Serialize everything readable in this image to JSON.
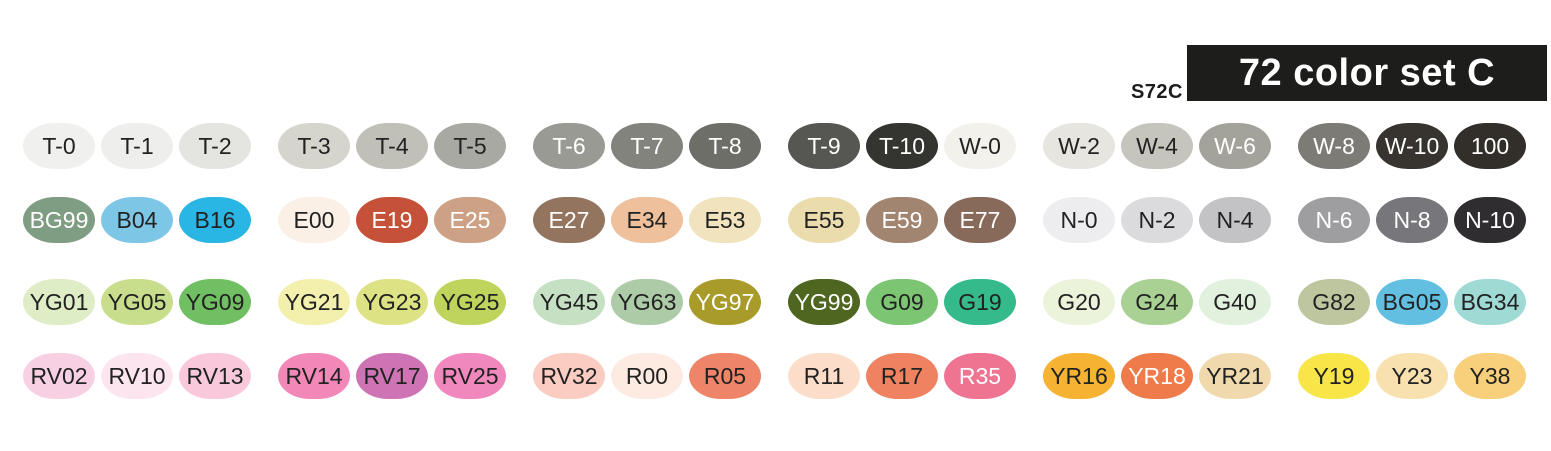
{
  "header": {
    "set_code": "S72C",
    "title": "72 color set C",
    "title_bg": "#1D1D1B",
    "title_color": "#FFFFFF"
  },
  "swatch_label_colors": {
    "dark": "#222222",
    "light": "#FFFFFF"
  },
  "rows": [
    {
      "name": "row-1-toner-warm-grays",
      "swatches": [
        {
          "label": "T-0",
          "color": "#F0F0EE",
          "label_tone": "dark"
        },
        {
          "label": "T-1",
          "color": "#EEEEEC",
          "label_tone": "dark"
        },
        {
          "label": "T-2",
          "color": "#E4E4E0",
          "label_tone": "dark"
        },
        {
          "label": "T-3",
          "color": "#D5D5CE",
          "label_tone": "dark"
        },
        {
          "label": "T-4",
          "color": "#C0C0B9",
          "label_tone": "dark"
        },
        {
          "label": "T-5",
          "color": "#A9A9A3",
          "label_tone": "dark"
        },
        {
          "label": "T-6",
          "color": "#9A9A94",
          "label_tone": "light"
        },
        {
          "label": "T-7",
          "color": "#83837D",
          "label_tone": "light"
        },
        {
          "label": "T-8",
          "color": "#6E6E69",
          "label_tone": "light"
        },
        {
          "label": "T-9",
          "color": "#565652",
          "label_tone": "light"
        },
        {
          "label": "T-10",
          "color": "#343430",
          "label_tone": "light"
        },
        {
          "label": "W-0",
          "color": "#F2F1EB",
          "label_tone": "dark"
        },
        {
          "label": "W-2",
          "color": "#E6E5DF",
          "label_tone": "dark"
        },
        {
          "label": "W-4",
          "color": "#C6C5BD",
          "label_tone": "dark"
        },
        {
          "label": "W-6",
          "color": "#A3A29B",
          "label_tone": "light"
        },
        {
          "label": "W-8",
          "color": "#7C7B75",
          "label_tone": "light"
        },
        {
          "label": "W-10",
          "color": "#37332E",
          "label_tone": "light"
        },
        {
          "label": "100",
          "color": "#322E2A",
          "label_tone": "light"
        }
      ]
    },
    {
      "name": "row-2-bg-b-e-n",
      "swatches": [
        {
          "label": "BG99",
          "color": "#7E9D83",
          "label_tone": "light"
        },
        {
          "label": "B04",
          "color": "#7DC6E6",
          "label_tone": "dark"
        },
        {
          "label": "B16",
          "color": "#2AB6E5",
          "label_tone": "dark"
        },
        {
          "label": "E00",
          "color": "#FBF0E5",
          "label_tone": "dark"
        },
        {
          "label": "E19",
          "color": "#C45138",
          "label_tone": "light"
        },
        {
          "label": "E25",
          "color": "#CDA185",
          "label_tone": "light"
        },
        {
          "label": "E27",
          "color": "#93755F",
          "label_tone": "light"
        },
        {
          "label": "E34",
          "color": "#EEC09B",
          "label_tone": "dark"
        },
        {
          "label": "E53",
          "color": "#F0E3BD",
          "label_tone": "dark"
        },
        {
          "label": "E55",
          "color": "#EBDCAD",
          "label_tone": "dark"
        },
        {
          "label": "E59",
          "color": "#A18571",
          "label_tone": "light"
        },
        {
          "label": "E77",
          "color": "#886A5A",
          "label_tone": "light"
        },
        {
          "label": "N-0",
          "color": "#EDEDEF",
          "label_tone": "dark"
        },
        {
          "label": "N-2",
          "color": "#DBDBDE",
          "label_tone": "dark"
        },
        {
          "label": "N-4",
          "color": "#C3C3C6",
          "label_tone": "dark"
        },
        {
          "label": "N-6",
          "color": "#9E9EA1",
          "label_tone": "light"
        },
        {
          "label": "N-8",
          "color": "#77777B",
          "label_tone": "light"
        },
        {
          "label": "N-10",
          "color": "#2F2D2F",
          "label_tone": "light"
        }
      ]
    },
    {
      "name": "row-3-yg-g-bg",
      "swatches": [
        {
          "label": "YG01",
          "color": "#DFEDC6",
          "label_tone": "dark"
        },
        {
          "label": "YG05",
          "color": "#C8DE8D",
          "label_tone": "dark"
        },
        {
          "label": "YG09",
          "color": "#70BF62",
          "label_tone": "dark"
        },
        {
          "label": "YG21",
          "color": "#F3F0AE",
          "label_tone": "dark"
        },
        {
          "label": "YG23",
          "color": "#DDE284",
          "label_tone": "dark"
        },
        {
          "label": "YG25",
          "color": "#BFD45C",
          "label_tone": "dark"
        },
        {
          "label": "YG45",
          "color": "#C5E0C2",
          "label_tone": "dark"
        },
        {
          "label": "YG63",
          "color": "#AECBA7",
          "label_tone": "dark"
        },
        {
          "label": "YG97",
          "color": "#A89B29",
          "label_tone": "light"
        },
        {
          "label": "YG99",
          "color": "#4E661F",
          "label_tone": "light"
        },
        {
          "label": "G09",
          "color": "#7CC572",
          "label_tone": "dark"
        },
        {
          "label": "G19",
          "color": "#35BA8C",
          "label_tone": "dark"
        },
        {
          "label": "G20",
          "color": "#EBF3DA",
          "label_tone": "dark"
        },
        {
          "label": "G24",
          "color": "#A9D194",
          "label_tone": "dark"
        },
        {
          "label": "G40",
          "color": "#E2F1DD",
          "label_tone": "dark"
        },
        {
          "label": "G82",
          "color": "#BDC69F",
          "label_tone": "dark"
        },
        {
          "label": "BG05",
          "color": "#63BFE1",
          "label_tone": "dark"
        },
        {
          "label": "BG34",
          "color": "#9FDAD5",
          "label_tone": "dark"
        }
      ]
    },
    {
      "name": "row-4-rv-r-yr-y",
      "swatches": [
        {
          "label": "RV02",
          "color": "#F8D0E3",
          "label_tone": "dark"
        },
        {
          "label": "RV10",
          "color": "#FCE5EF",
          "label_tone": "dark"
        },
        {
          "label": "RV13",
          "color": "#F9C9DB",
          "label_tone": "dark"
        },
        {
          "label": "RV14",
          "color": "#F288B8",
          "label_tone": "dark"
        },
        {
          "label": "RV17",
          "color": "#CE74B4",
          "label_tone": "dark"
        },
        {
          "label": "RV25",
          "color": "#F088BE",
          "label_tone": "dark"
        },
        {
          "label": "RV32",
          "color": "#FACCC2",
          "label_tone": "dark"
        },
        {
          "label": "R00",
          "color": "#FDEBE2",
          "label_tone": "dark"
        },
        {
          "label": "R05",
          "color": "#EE8468",
          "label_tone": "dark"
        },
        {
          "label": "R11",
          "color": "#FBDDCA",
          "label_tone": "dark"
        },
        {
          "label": "R17",
          "color": "#EE8261",
          "label_tone": "dark"
        },
        {
          "label": "R35",
          "color": "#EF7492",
          "label_tone": "light"
        },
        {
          "label": "YR16",
          "color": "#F6B233",
          "label_tone": "dark"
        },
        {
          "label": "YR18",
          "color": "#EF7A4A",
          "label_tone": "light"
        },
        {
          "label": "YR21",
          "color": "#F0DAAD",
          "label_tone": "dark"
        },
        {
          "label": "Y19",
          "color": "#F8E548",
          "label_tone": "dark"
        },
        {
          "label": "Y23",
          "color": "#F8E0AF",
          "label_tone": "dark"
        },
        {
          "label": "Y38",
          "color": "#F8CF7A",
          "label_tone": "dark"
        }
      ]
    }
  ]
}
